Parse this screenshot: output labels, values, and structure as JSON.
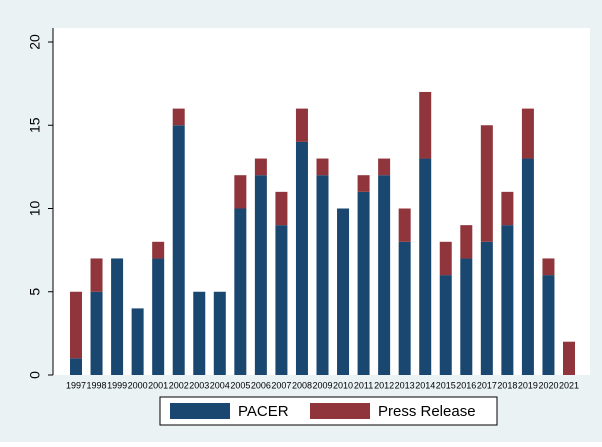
{
  "chart_data": {
    "type": "stacked_bar",
    "categories": [
      "1997",
      "1998",
      "1999",
      "2000",
      "2001",
      "2002",
      "2003",
      "2004",
      "2005",
      "2006",
      "2007",
      "2008",
      "2009",
      "2010",
      "2011",
      "2012",
      "2013",
      "2014",
      "2015",
      "2016",
      "2017",
      "2018",
      "2019",
      "2020",
      "2021"
    ],
    "series": [
      {
        "name": "PACER",
        "color": "#1a476f",
        "values": [
          1,
          5,
          7,
          4,
          7,
          15,
          5,
          5,
          10,
          12,
          9,
          14,
          12,
          10,
          11,
          12,
          8,
          13,
          6,
          7,
          8,
          9,
          13,
          6,
          0
        ]
      },
      {
        "name": "Press Release",
        "color": "#90353b",
        "values": [
          4,
          2,
          0,
          0,
          1,
          1,
          0,
          0,
          2,
          1,
          2,
          2,
          1,
          0,
          1,
          1,
          2,
          4,
          2,
          2,
          7,
          2,
          3,
          1,
          2
        ]
      }
    ],
    "ylim": [
      0,
      20
    ],
    "yticks": [
      0,
      5,
      10,
      15,
      20
    ],
    "legend": "bottom"
  }
}
